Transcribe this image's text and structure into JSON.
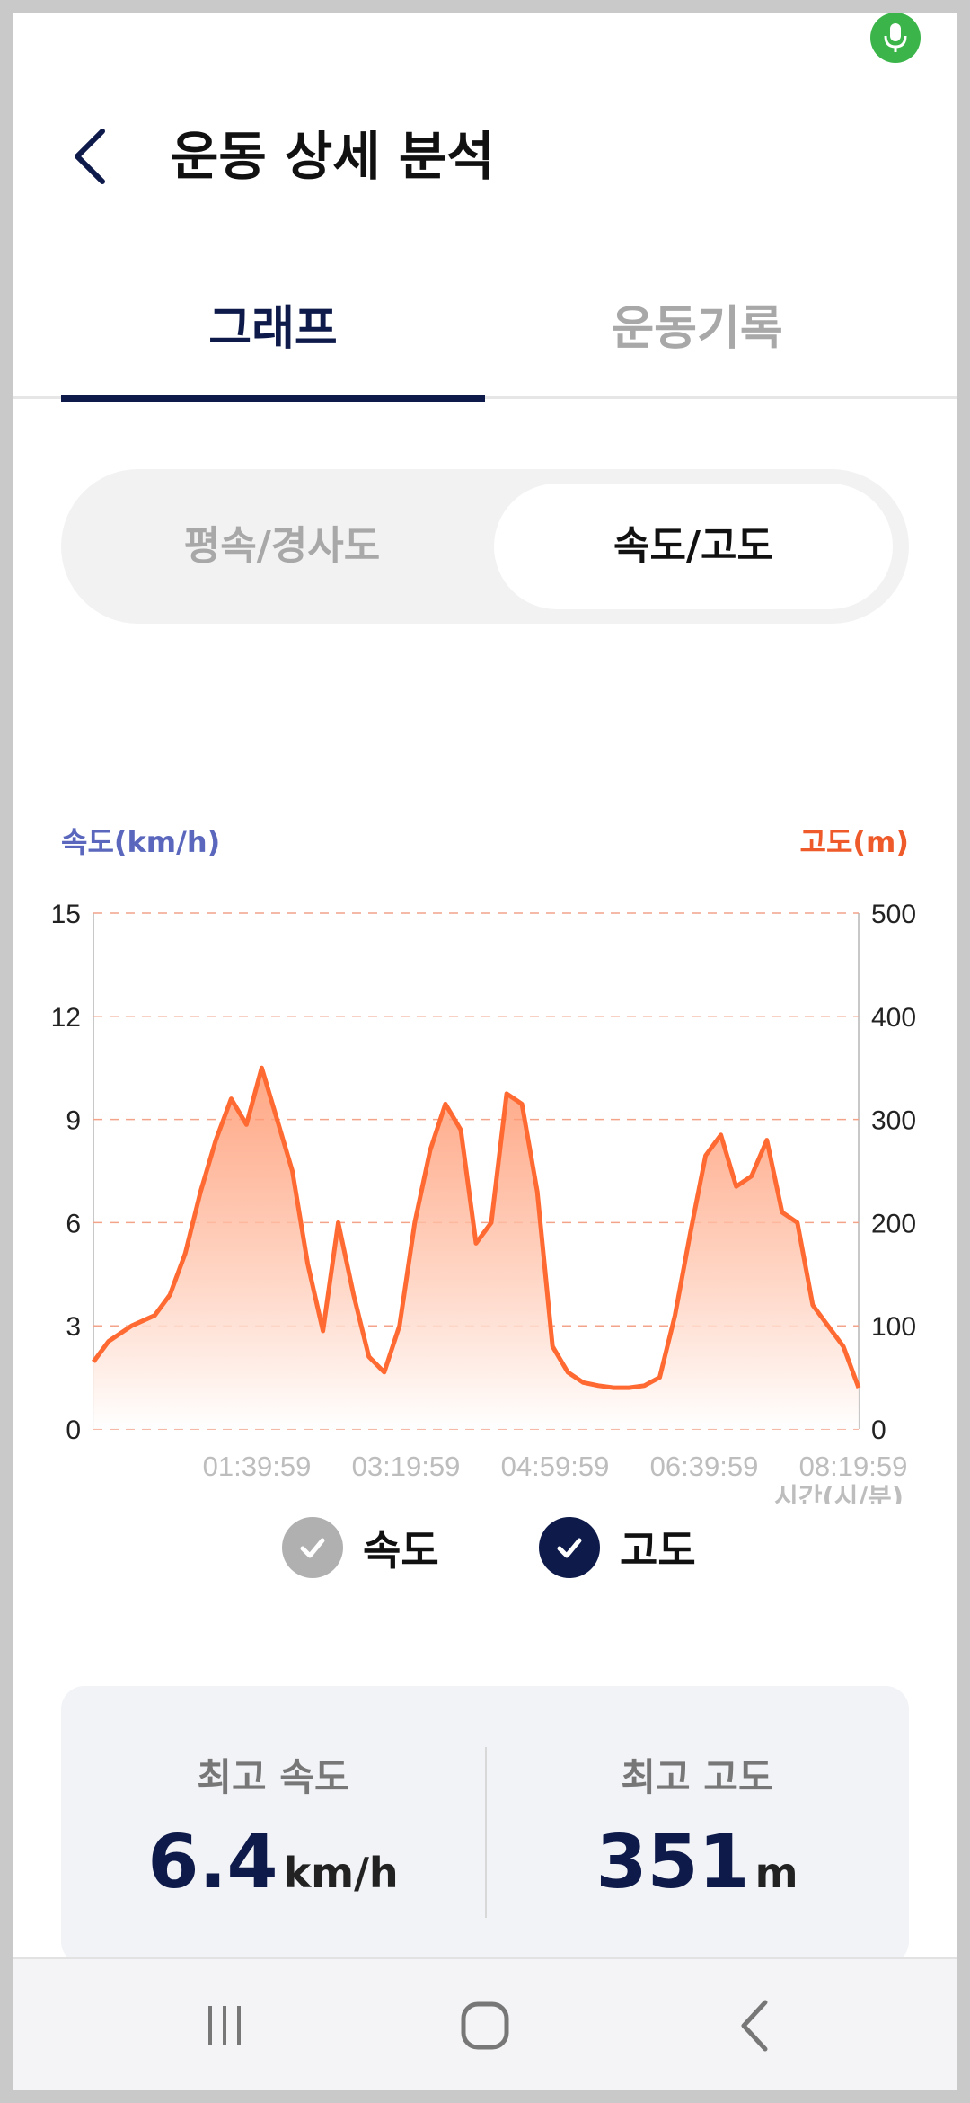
{
  "header": {
    "title": "운동 상세 분석"
  },
  "tabs": [
    {
      "label": "그래프",
      "active": true
    },
    {
      "label": "운동기록",
      "active": false
    }
  ],
  "segment": {
    "left_label": "평속/경사도",
    "right_label": "속도/고도",
    "selected": "속도/고도"
  },
  "chart": {
    "left_axis_title": "속도(km/h)",
    "right_axis_title": "고도(m)",
    "x_axis_title": "시간(시/분)"
  },
  "legend": {
    "speed_label": "속도",
    "speed_checked": false,
    "altitude_label": "고도",
    "altitude_checked": true
  },
  "stats": {
    "max_speed_label": "최고 속도",
    "max_speed_value": "6.4",
    "max_speed_unit": "km/h",
    "max_alt_label": "최고 고도",
    "max_alt_value": "351",
    "max_alt_unit": "m"
  },
  "colors": {
    "accent": "#0e1a4a",
    "altitude": "#ef5a2a",
    "speed_axis": "#5a67bd",
    "mic": "#3bb54a"
  },
  "icons": [
    "mic-icon",
    "back-arrow-icon",
    "check-icon",
    "nav-recent-icon",
    "nav-home-icon",
    "nav-back-icon"
  ],
  "chart_data": {
    "type": "area",
    "x_ticks": [
      "01:39:59",
      "03:19:59",
      "04:59:59",
      "06:39:59",
      "08:19:59"
    ],
    "y_left_ticks": [
      0,
      3,
      6,
      9,
      12,
      15
    ],
    "y_right_ticks": [
      0,
      100,
      200,
      300,
      400,
      500
    ],
    "ylabel_left": "속도(km/h)",
    "ylabel_right": "고도(m)",
    "xlabel": "시간(시/분)",
    "ylim_left": [
      0,
      15
    ],
    "ylim_right": [
      0,
      500
    ],
    "grid": true,
    "series": [
      {
        "name": "고도",
        "axis": "right",
        "x": [
          0,
          0.02,
          0.05,
          0.08,
          0.1,
          0.12,
          0.14,
          0.16,
          0.18,
          0.2,
          0.22,
          0.24,
          0.26,
          0.28,
          0.3,
          0.32,
          0.34,
          0.36,
          0.38,
          0.4,
          0.42,
          0.44,
          0.46,
          0.48,
          0.5,
          0.52,
          0.54,
          0.56,
          0.58,
          0.6,
          0.62,
          0.64,
          0.66,
          0.68,
          0.7,
          0.72,
          0.74,
          0.76,
          0.78,
          0.8,
          0.82,
          0.84,
          0.86,
          0.88,
          0.9,
          0.92,
          0.94,
          0.96,
          0.98,
          1.0
        ],
        "values": [
          65,
          85,
          100,
          110,
          130,
          170,
          230,
          280,
          320,
          295,
          350,
          300,
          250,
          160,
          95,
          200,
          130,
          70,
          55,
          100,
          200,
          270,
          315,
          290,
          180,
          200,
          325,
          315,
          230,
          80,
          55,
          45,
          42,
          40,
          40,
          42,
          50,
          110,
          190,
          265,
          285,
          235,
          245,
          280,
          210,
          200,
          120,
          100,
          80,
          40
        ]
      }
    ]
  }
}
